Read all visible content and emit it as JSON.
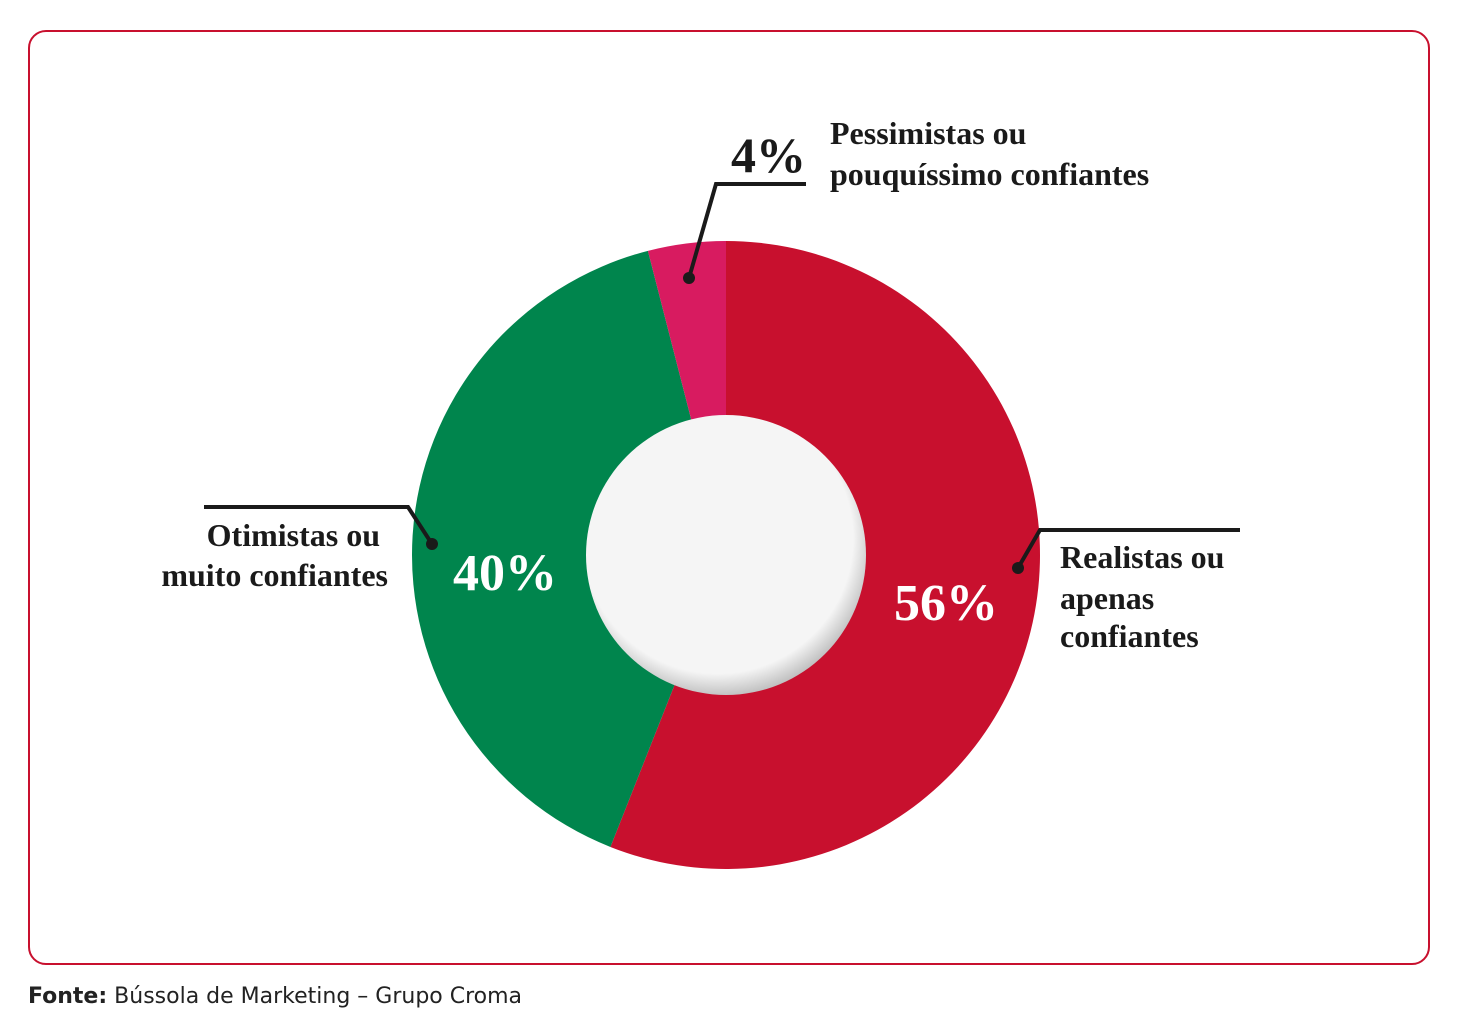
{
  "chart_data": {
    "type": "pie",
    "variant": "donut",
    "slices": [
      {
        "label": "Realistas ou apenas confiantes",
        "label_lines": [
          "Realistas ou",
          "apenas",
          "confiantes"
        ],
        "value": 56,
        "display": "56%",
        "color": "#c8102e"
      },
      {
        "label": "Otimistas ou muito confiantes",
        "label_lines": [
          "Otimistas ou",
          "muito confiantes"
        ],
        "value": 40,
        "display": "40%",
        "color": "#00854d"
      },
      {
        "label": "Pessimistas ou pouquíssimo confiantes",
        "label_lines": [
          "Pessimistas ou",
          "pouquíssimo confiantes"
        ],
        "value": 4,
        "display": "4%",
        "color": "#d81b60"
      }
    ]
  },
  "source": {
    "prefix": "Fonte:",
    "text": "Bússola de Marketing – Grupo Croma"
  },
  "colors": {
    "frame": "#c8102e",
    "hole": "#f4f4f4",
    "leader": "#1a1a1a"
  }
}
